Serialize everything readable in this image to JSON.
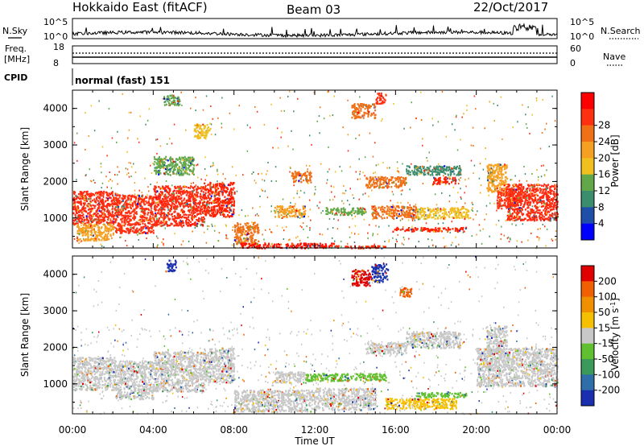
{
  "header": {
    "station": "Hokkaido East (fitACF)",
    "beam": "Beam 03",
    "date": "22/Oct/2017"
  },
  "top_panels": {
    "nsky_label": "N.Sky",
    "nsky_ticks": [
      "10^5",
      "10^0"
    ],
    "nsearch_label": "N.Search",
    "nsearch_ticks": [
      "10^5",
      "10^0"
    ],
    "freq_label": "Freq.",
    "freq_unit": "[MHz]",
    "freq_ticks": [
      "18",
      "8"
    ],
    "nave_label": "Nave",
    "nave_ticks": [
      "60",
      "0"
    ],
    "cpid_label": "CPID",
    "cpid_text": "normal (fast) 151"
  },
  "chart_data": [
    {
      "type": "heatmap",
      "name": "power-panel",
      "ylabel": "Slant Range [km]",
      "xlabel": "",
      "xlim": [
        0,
        24
      ],
      "ylim": [
        180,
        4500
      ],
      "y_ticks": [
        "1000",
        "2000",
        "3000",
        "4000"
      ],
      "colorbar": {
        "label": "Power [dB]",
        "ticks": [
          "4",
          "8",
          "12",
          "16",
          "20",
          "24",
          "28"
        ],
        "colors": [
          "#0000ff",
          "#1f4ea8",
          "#3c8c6e",
          "#62a84a",
          "#f0c020",
          "#f5a020",
          "#f07018",
          "#ff3010",
          "#ff0000"
        ]
      },
      "regions": [
        {
          "t0": 0.0,
          "t1": 2.1,
          "r0": 850,
          "r1": 1750,
          "color": "#ff2a10"
        },
        {
          "t0": 2.1,
          "t1": 4.0,
          "r0": 600,
          "r1": 1650,
          "color": "#ff3010"
        },
        {
          "t0": 4.0,
          "t1": 6.5,
          "r0": 800,
          "r1": 1900,
          "color": "#ff2a10"
        },
        {
          "t0": 6.5,
          "t1": 8.0,
          "r0": 1050,
          "r1": 2000,
          "color": "#ff2000"
        },
        {
          "t0": 0.2,
          "t1": 2.0,
          "r0": 400,
          "r1": 850,
          "color": "#f5a020"
        },
        {
          "t0": 8.0,
          "t1": 9.2,
          "r0": 300,
          "r1": 900,
          "color": "#f07018"
        },
        {
          "t0": 8.3,
          "t1": 13.0,
          "r0": 190,
          "r1": 330,
          "color": "#ff1000"
        },
        {
          "t0": 13.0,
          "t1": 15.5,
          "r0": 190,
          "r1": 260,
          "color": "#ff3010"
        },
        {
          "t0": 15.8,
          "t1": 19.5,
          "r0": 650,
          "r1": 760,
          "color": "#ff2000"
        },
        {
          "t0": 10.0,
          "t1": 11.5,
          "r0": 1050,
          "r1": 1350,
          "color": "#f5a020"
        },
        {
          "t0": 12.5,
          "t1": 14.5,
          "r0": 1100,
          "r1": 1300,
          "color": "#62a84a"
        },
        {
          "t0": 14.8,
          "t1": 17.0,
          "r0": 1000,
          "r1": 1350,
          "color": "#f07018"
        },
        {
          "t0": 17.0,
          "t1": 19.6,
          "r0": 1000,
          "r1": 1300,
          "color": "#f0c020"
        },
        {
          "t0": 14.5,
          "t1": 16.5,
          "r0": 1850,
          "r1": 2150,
          "color": "#f07018"
        },
        {
          "t0": 17.8,
          "t1": 19.0,
          "r0": 1950,
          "r1": 2150,
          "color": "#ff2000"
        },
        {
          "t0": 16.5,
          "t1": 19.2,
          "r0": 2200,
          "r1": 2450,
          "color": "#3c8c6e"
        },
        {
          "t0": 10.8,
          "t1": 11.8,
          "r0": 2000,
          "r1": 2300,
          "color": "#f07018"
        },
        {
          "t0": 4.0,
          "t1": 6.0,
          "r0": 2200,
          "r1": 2700,
          "color": "#62a84a"
        },
        {
          "t0": 13.8,
          "t1": 15.0,
          "r0": 3750,
          "r1": 4150,
          "color": "#f07018"
        },
        {
          "t0": 15.0,
          "t1": 15.5,
          "r0": 4150,
          "r1": 4450,
          "color": "#ff3010"
        },
        {
          "t0": 20.5,
          "t1": 21.5,
          "r0": 1700,
          "r1": 2500,
          "color": "#f5a020"
        },
        {
          "t0": 21.5,
          "t1": 24.0,
          "r0": 950,
          "r1": 1950,
          "color": "#ff2a10"
        },
        {
          "t0": 21.0,
          "t1": 22.2,
          "r0": 1250,
          "r1": 1850,
          "color": "#ff3010"
        },
        {
          "t0": 4.5,
          "t1": 5.3,
          "r0": 4100,
          "r1": 4400,
          "color": "#62a84a"
        },
        {
          "t0": 6.0,
          "t1": 6.8,
          "r0": 3200,
          "r1": 3600,
          "color": "#f0c020"
        }
      ]
    },
    {
      "type": "heatmap",
      "name": "velocity-panel",
      "ylabel": "Slant Range [km]",
      "xlabel": "Time UT",
      "xlim": [
        0,
        24
      ],
      "ylim": [
        180,
        4500
      ],
      "x_ticks": [
        "00:00",
        "04:00",
        "08:00",
        "12:00",
        "16:00",
        "20:00",
        "00:00"
      ],
      "y_ticks": [
        "1000",
        "2000",
        "3000",
        "4000"
      ],
      "colorbar": {
        "label": "Velocity [m s",
        "label_sup": "-1",
        "label_end": "]",
        "ticks": [
          "200",
          "100",
          "50",
          "15",
          "-15",
          "-50",
          "-100",
          "-200"
        ],
        "colors": [
          "#1a2fb0",
          "#2f6ea8",
          "#3a9a5a",
          "#60c030",
          "#c8c8c8",
          "#f5c000",
          "#f09000",
          "#f06000",
          "#e00000"
        ]
      },
      "regions": [
        {
          "t0": 0.0,
          "t1": 2.1,
          "r0": 850,
          "r1": 1750,
          "color": "#c8c8c8"
        },
        {
          "t0": 2.1,
          "t1": 4.0,
          "r0": 600,
          "r1": 1650,
          "color": "#c8c8c8"
        },
        {
          "t0": 4.0,
          "t1": 6.5,
          "r0": 800,
          "r1": 1900,
          "color": "#c8c8c8"
        },
        {
          "t0": 6.5,
          "t1": 8.0,
          "r0": 1050,
          "r1": 2000,
          "color": "#c8c8c8"
        },
        {
          "t0": 8.0,
          "t1": 12.0,
          "r0": 250,
          "r1": 850,
          "color": "#c8c8c8"
        },
        {
          "t0": 12.0,
          "t1": 15.0,
          "r0": 300,
          "r1": 900,
          "color": "#c8c8c8"
        },
        {
          "t0": 15.5,
          "t1": 19.0,
          "r0": 330,
          "r1": 620,
          "color": "#f5c000"
        },
        {
          "t0": 11.5,
          "t1": 15.5,
          "r0": 1100,
          "r1": 1300,
          "color": "#60c030"
        },
        {
          "t0": 17.0,
          "t1": 19.5,
          "r0": 650,
          "r1": 780,
          "color": "#60c030"
        },
        {
          "t0": 14.5,
          "t1": 16.5,
          "r0": 1850,
          "r1": 2150,
          "color": "#c8c8c8"
        },
        {
          "t0": 16.5,
          "t1": 19.2,
          "r0": 2000,
          "r1": 2450,
          "color": "#c8c8c8"
        },
        {
          "t0": 20.0,
          "t1": 24.0,
          "r0": 950,
          "r1": 2000,
          "color": "#c8c8c8"
        },
        {
          "t0": 20.5,
          "t1": 21.5,
          "r0": 1800,
          "r1": 2600,
          "color": "#c8c8c8"
        },
        {
          "t0": 13.8,
          "t1": 14.8,
          "r0": 3700,
          "r1": 4150,
          "color": "#e00000"
        },
        {
          "t0": 14.8,
          "t1": 15.6,
          "r0": 3800,
          "r1": 4300,
          "color": "#1a2fb0"
        },
        {
          "t0": 16.2,
          "t1": 16.8,
          "r0": 3400,
          "r1": 3650,
          "color": "#f06000"
        },
        {
          "t0": 4.6,
          "t1": 5.1,
          "r0": 4100,
          "r1": 4400,
          "color": "#1a2fb0"
        },
        {
          "t0": 10.0,
          "t1": 11.5,
          "r0": 1050,
          "r1": 1350,
          "color": "#c8c8c8"
        }
      ]
    }
  ]
}
